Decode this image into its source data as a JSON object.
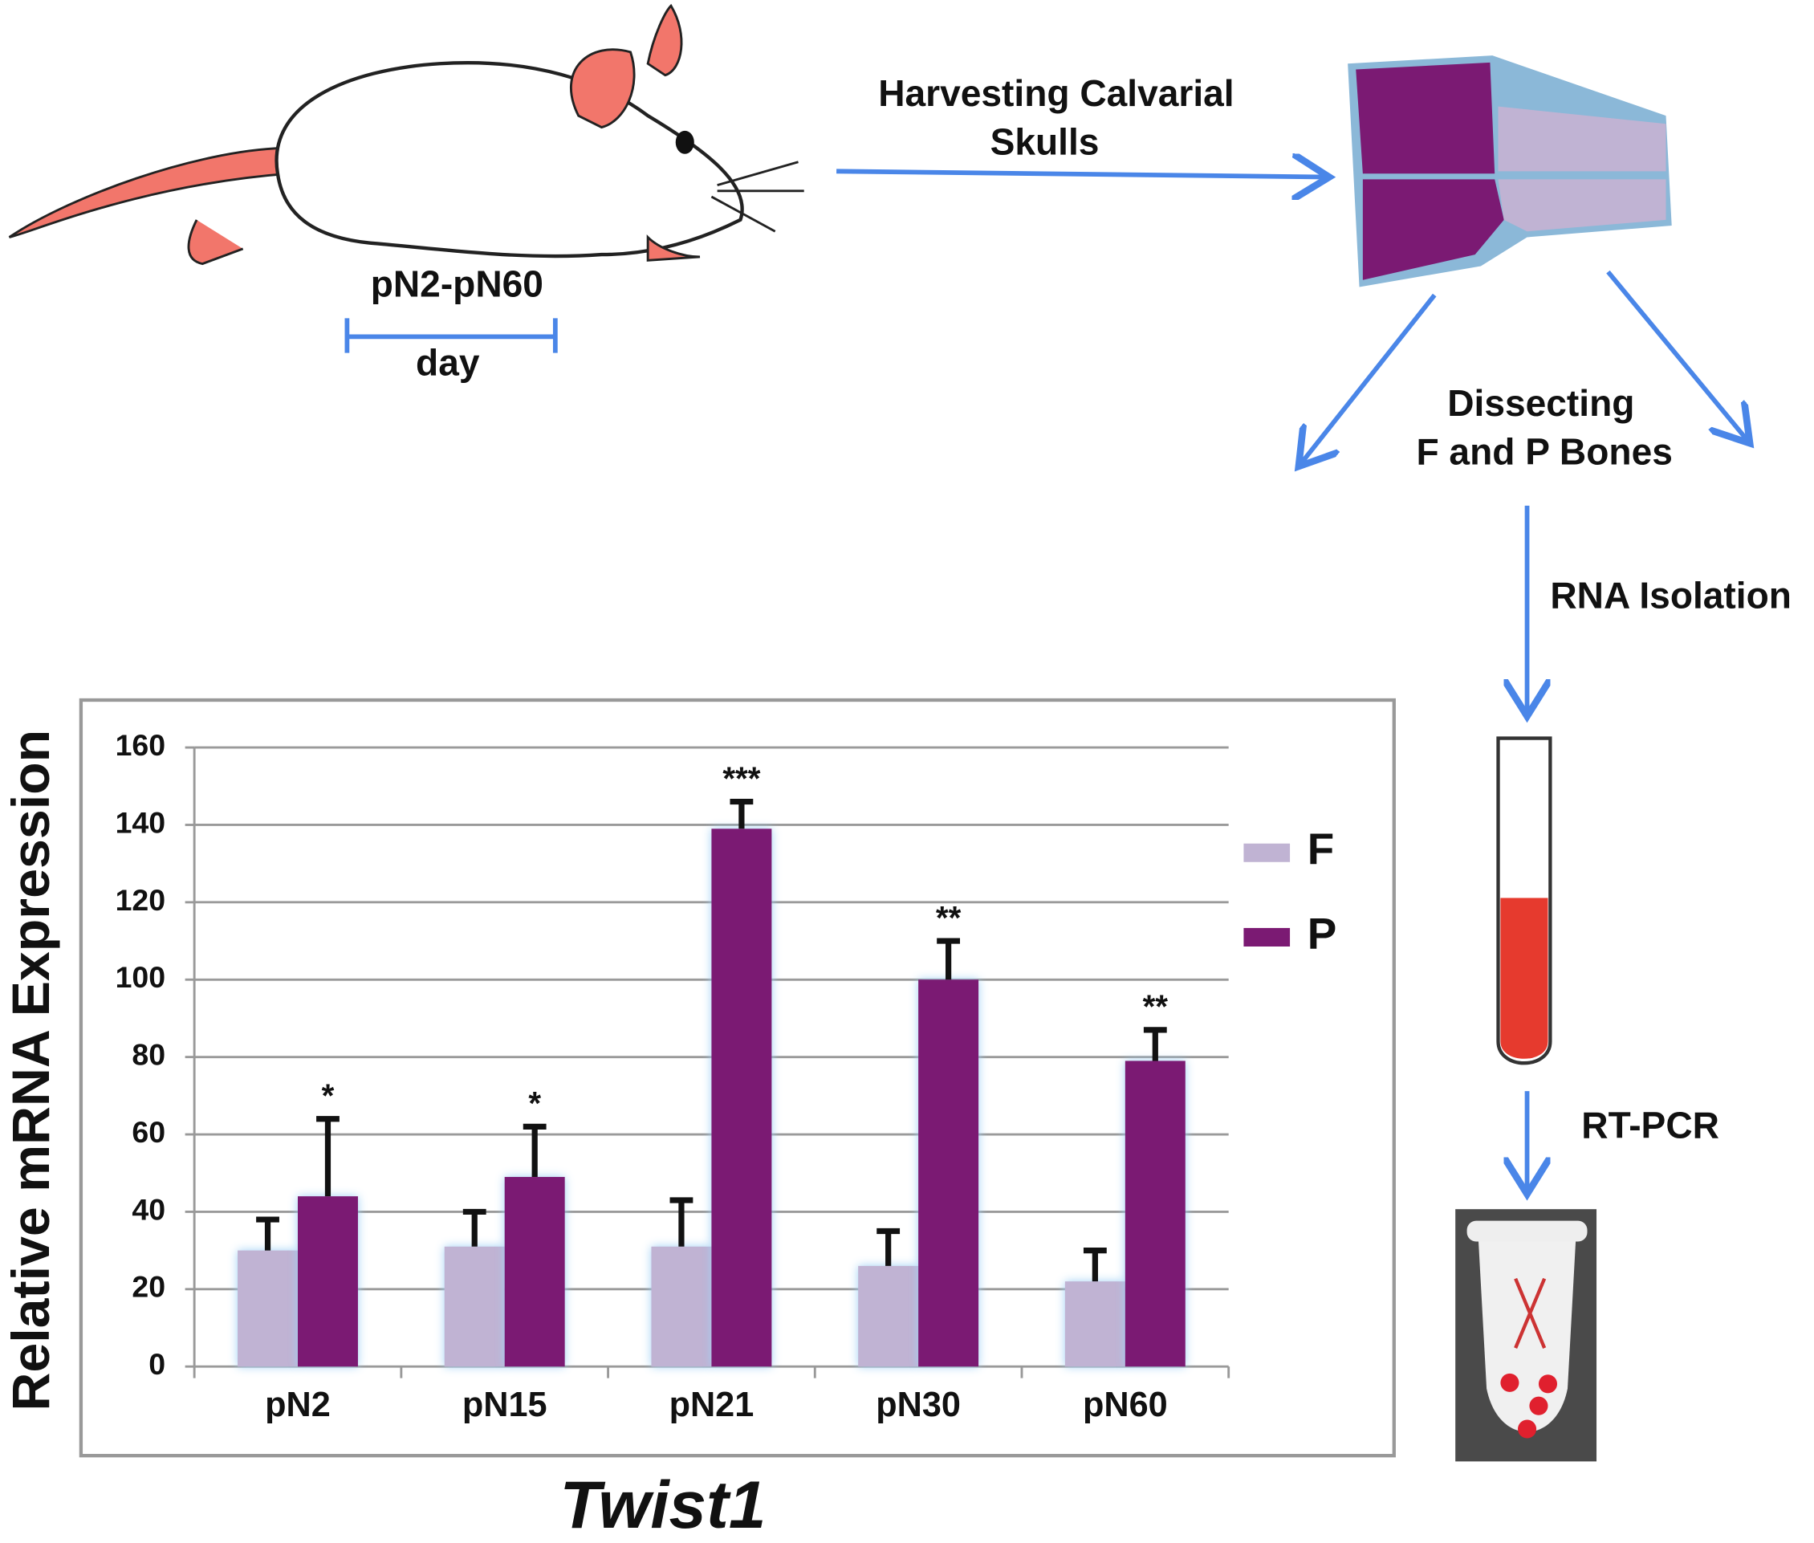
{
  "chart_data": {
    "type": "bar",
    "y_label": "Relative mRNA Expression",
    "x_label": "Twist1",
    "categories": [
      "pN2",
      "pN15",
      "pN21",
      "pN30",
      "pN60"
    ],
    "series": [
      {
        "name": "F",
        "color": "#c0b3d3",
        "values": [
          30,
          31,
          31,
          26,
          22
        ],
        "errors": [
          8,
          9,
          12,
          9,
          8
        ]
      },
      {
        "name": "P",
        "color": "#7b1a73",
        "values": [
          44,
          49,
          139,
          100,
          79
        ],
        "errors": [
          20,
          13,
          7,
          10,
          8
        ],
        "annotations": [
          "*",
          "*",
          "***",
          "**",
          "**"
        ]
      }
    ],
    "ylim": [
      0,
      160
    ],
    "yticks": [
      0,
      20,
      40,
      60,
      80,
      100,
      120,
      140,
      160
    ],
    "grid": true
  },
  "diagram": {
    "age_range": "pN2-pN60",
    "age_unit": "day",
    "harvesting": [
      "Harvesting Calvarial",
      "Skulls"
    ],
    "dissecting": [
      "Dissecting",
      "F and P Bones"
    ],
    "rna": "RNA Isolation",
    "pcr": "RT-PCR"
  }
}
